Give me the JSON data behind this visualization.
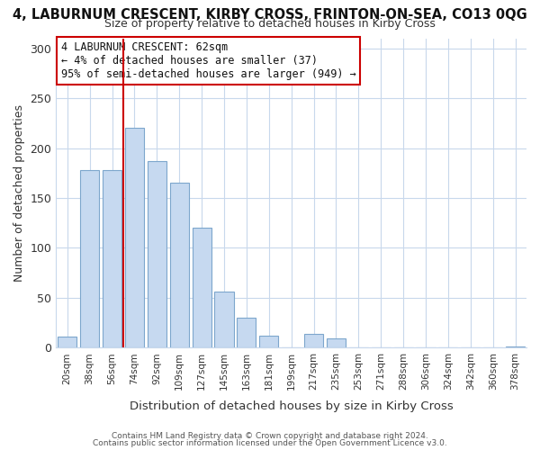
{
  "title": "4, LABURNUM CRESCENT, KIRBY CROSS, FRINTON-ON-SEA, CO13 0QG",
  "subtitle": "Size of property relative to detached houses in Kirby Cross",
  "xlabel": "Distribution of detached houses by size in Kirby Cross",
  "ylabel": "Number of detached properties",
  "bar_labels": [
    "20sqm",
    "38sqm",
    "56sqm",
    "74sqm",
    "92sqm",
    "109sqm",
    "127sqm",
    "145sqm",
    "163sqm",
    "181sqm",
    "199sqm",
    "217sqm",
    "235sqm",
    "253sqm",
    "271sqm",
    "288sqm",
    "306sqm",
    "324sqm",
    "342sqm",
    "360sqm",
    "378sqm"
  ],
  "bar_values": [
    11,
    178,
    178,
    220,
    187,
    165,
    120,
    56,
    30,
    12,
    0,
    14,
    9,
    0,
    0,
    0,
    0,
    0,
    0,
    0,
    1
  ],
  "bar_color": "#c6d9f0",
  "bar_edge_color": "#7da6cc",
  "vline_x_idx": 3,
  "vline_color": "#cc0000",
  "ylim": [
    0,
    310
  ],
  "yticks": [
    0,
    50,
    100,
    150,
    200,
    250,
    300
  ],
  "annotation_title": "4 LABURNUM CRESCENT: 62sqm",
  "annotation_line1": "← 4% of detached houses are smaller (37)",
  "annotation_line2": "95% of semi-detached houses are larger (949) →",
  "annotation_box_color": "#ffffff",
  "annotation_box_edge": "#cc0000",
  "footer1": "Contains HM Land Registry data © Crown copyright and database right 2024.",
  "footer2": "Contains public sector information licensed under the Open Government Licence v3.0.",
  "background_color": "#ffffff",
  "grid_color": "#c8d8ec"
}
